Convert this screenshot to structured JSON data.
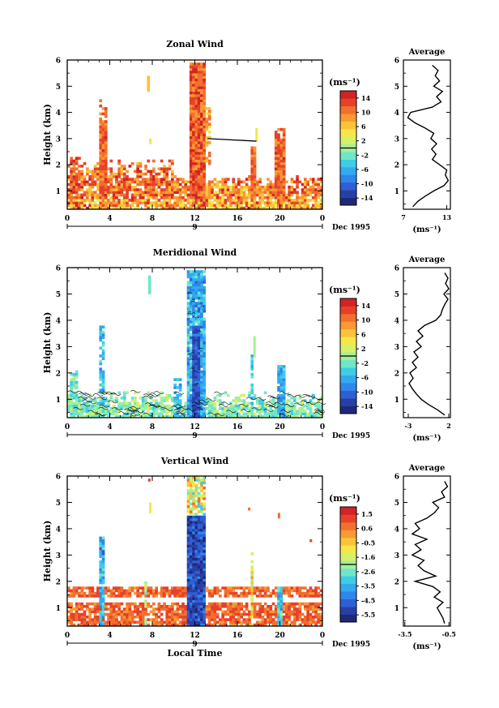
{
  "colors": {
    "scale": [
      "#1e2a78",
      "#2a3fa6",
      "#2f5fd6",
      "#2f87ea",
      "#33aaf0",
      "#3fcde6",
      "#6fe6c9",
      "#a6ef9a",
      "#d6f06a",
      "#f6e64a",
      "#fbc33a",
      "#f99a33",
      "#f26f2e",
      "#e6412a",
      "#d12424"
    ],
    "line": "#000000"
  },
  "chart_data": [
    {
      "type": "heatmap",
      "title": "Zonal Wind",
      "ylabel": "Height (km)",
      "yticks": [
        "1",
        "2",
        "3",
        "4",
        "5",
        "6"
      ],
      "ylim": [
        0.3,
        6
      ],
      "xlim": [
        0,
        24
      ],
      "xticks": [
        "0",
        "4",
        "8",
        "12",
        "16",
        "20",
        "0"
      ],
      "day_label": "9",
      "date_label": "Dec 1995",
      "colorbar_unit": "(ms⁻¹)",
      "colorbar_ticks": [
        "14",
        "10",
        "6",
        "2",
        "-2",
        "-6",
        "-10",
        "-14"
      ],
      "colorbar_range": [
        -16,
        16
      ],
      "profile": {
        "title": "Average",
        "xticks": [
          "7",
          "13"
        ],
        "xlim": [
          7,
          13.5
        ],
        "xlabel": "(ms⁻¹)",
        "heights": [
          0.4,
          0.6,
          0.8,
          1.0,
          1.2,
          1.4,
          1.6,
          1.8,
          2.0,
          2.2,
          2.4,
          2.6,
          2.8,
          3.0,
          3.2,
          3.4,
          3.6,
          3.8,
          4.0,
          4.2,
          4.4,
          4.6,
          4.8,
          5.0,
          5.2,
          5.4,
          5.6,
          5.8
        ],
        "values": [
          8.3,
          9.0,
          10.0,
          11.2,
          12.6,
          13.2,
          12.8,
          13.0,
          12.0,
          11.0,
          11.5,
          10.9,
          11.6,
          10.8,
          11.2,
          10.0,
          8.6,
          7.6,
          8.0,
          11.0,
          12.2,
          11.6,
          12.4,
          11.2,
          12.0,
          11.4,
          11.8,
          11.0
        ]
      }
    },
    {
      "type": "heatmap",
      "title": "Meridional Wind",
      "ylabel": "Height (km)",
      "yticks": [
        "1",
        "2",
        "3",
        "4",
        "5",
        "6"
      ],
      "ylim": [
        0.3,
        6
      ],
      "xlim": [
        0,
        24
      ],
      "xticks": [
        "0",
        "4",
        "8",
        "12",
        "16",
        "20",
        "0"
      ],
      "day_label": "9",
      "date_label": "Dec 1995",
      "colorbar_unit": "(ms⁻¹)",
      "colorbar_ticks": [
        "14",
        "10",
        "6",
        "2",
        "-2",
        "-6",
        "-10",
        "-14"
      ],
      "colorbar_range": [
        -16,
        16
      ],
      "profile": {
        "title": "Average",
        "xticks": [
          "-3",
          "2"
        ],
        "xlim": [
          -3.6,
          2.2
        ],
        "xlabel": "(ms⁻¹)",
        "heights": [
          0.4,
          0.6,
          0.8,
          1.0,
          1.2,
          1.4,
          1.6,
          1.8,
          2.0,
          2.2,
          2.4,
          2.6,
          2.8,
          3.0,
          3.2,
          3.4,
          3.6,
          3.8,
          4.0,
          4.2,
          4.4,
          4.6,
          4.8,
          5.0,
          5.2,
          5.4,
          5.6,
          5.8
        ],
        "values": [
          1.5,
          0.6,
          -0.5,
          -1.4,
          -2.0,
          -2.5,
          -2.9,
          -2.4,
          -2.8,
          -2.0,
          -2.5,
          -1.8,
          -2.3,
          -1.4,
          -2.0,
          -1.2,
          -1.8,
          -1.0,
          0.4,
          1.0,
          1.2,
          1.5,
          1.9,
          1.4,
          2.0,
          1.6,
          1.9,
          1.5
        ]
      }
    },
    {
      "type": "heatmap",
      "title": "Vertical Wind",
      "ylabel": "Height (km)",
      "xlabel": "Local Time",
      "yticks": [
        "1",
        "2",
        "3",
        "4",
        "5",
        "6"
      ],
      "ylim": [
        0.3,
        6
      ],
      "xlim": [
        0,
        24
      ],
      "xticks": [
        "0",
        "4",
        "8",
        "12",
        "16",
        "20",
        "0"
      ],
      "day_label": "9",
      "date_label": "Dec 1995",
      "colorbar_unit": "(ms⁻¹)",
      "colorbar_ticks": [
        "1.5",
        "0.6",
        "-0.5",
        "-1.6",
        "-2.6",
        "-3.5",
        "-4.5",
        "-5.5"
      ],
      "colorbar_range": [
        -6,
        2
      ],
      "profile": {
        "title": "Average",
        "xticks": [
          "-3.5",
          "-0.5"
        ],
        "xlim": [
          -3.6,
          -0.4
        ],
        "xlabel": "(ms⁻¹)",
        "heights": [
          0.4,
          0.6,
          0.8,
          1.0,
          1.2,
          1.4,
          1.6,
          1.8,
          2.0,
          2.2,
          2.4,
          2.6,
          2.8,
          3.0,
          3.2,
          3.4,
          3.6,
          3.8,
          4.0,
          4.2,
          4.4,
          4.6,
          4.8,
          5.0,
          5.2,
          5.4,
          5.6,
          5.8
        ],
        "values": [
          -0.8,
          -0.9,
          -1.1,
          -1.3,
          -0.9,
          -1.5,
          -1.1,
          -1.6,
          -2.8,
          -1.4,
          -2.2,
          -2.6,
          -2.2,
          -3.0,
          -2.4,
          -2.8,
          -2.0,
          -3.0,
          -2.5,
          -2.8,
          -2.0,
          -1.5,
          -1.2,
          -1.6,
          -0.8,
          -1.0,
          -0.6,
          -0.8
        ]
      }
    }
  ]
}
